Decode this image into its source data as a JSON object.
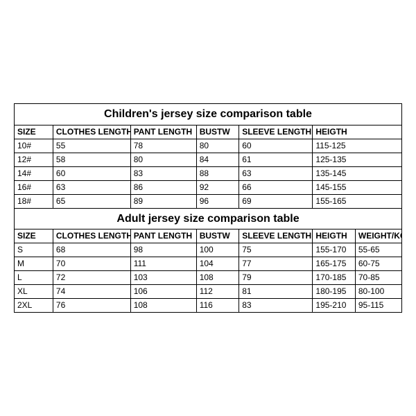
{
  "children": {
    "title": "Children's jersey size comparison table",
    "columns": [
      "SIZE",
      "CLOTHES LENGTH",
      "PANT LENGTH",
      "BUSTW",
      "SLEEVE LENGTH",
      "HEIGTH"
    ],
    "rows": [
      {
        "size": "10#",
        "clothes": "55",
        "pant": "78",
        "bustw": "80",
        "sleeve": "60",
        "height": "115-125"
      },
      {
        "size": "12#",
        "clothes": "58",
        "pant": "80",
        "bustw": "84",
        "sleeve": "61",
        "height": "125-135"
      },
      {
        "size": "14#",
        "clothes": "60",
        "pant": "83",
        "bustw": "88",
        "sleeve": "63",
        "height": "135-145"
      },
      {
        "size": "16#",
        "clothes": "63",
        "pant": "86",
        "bustw": "92",
        "sleeve": "66",
        "height": "145-155"
      },
      {
        "size": "18#",
        "clothes": "65",
        "pant": "89",
        "bustw": "96",
        "sleeve": "69",
        "height": "155-165"
      }
    ]
  },
  "adult": {
    "title": "Adult jersey size comparison table",
    "columns": [
      "SIZE",
      "CLOTHES LENGTH",
      "PANT LENGTH",
      "BUSTW",
      "SLEEVE LENGTH",
      "HEIGTH",
      "WEIGHT/KG"
    ],
    "rows": [
      {
        "size": "S",
        "clothes": "68",
        "pant": "98",
        "bustw": "100",
        "sleeve": "75",
        "height": "155-170",
        "weight": "55-65"
      },
      {
        "size": "M",
        "clothes": "70",
        "pant": "111",
        "bustw": "104",
        "sleeve": "77",
        "height": "165-175",
        "weight": "60-75"
      },
      {
        "size": "L",
        "clothes": "72",
        "pant": "103",
        "bustw": "108",
        "sleeve": "79",
        "height": "170-185",
        "weight": "70-85"
      },
      {
        "size": "XL",
        "clothes": "74",
        "pant": "106",
        "bustw": "112",
        "sleeve": "81",
        "height": "180-195",
        "weight": "80-100"
      },
      {
        "size": "2XL",
        "clothes": "76",
        "pant": "108",
        "bustw": "116",
        "sleeve": "83",
        "height": "195-210",
        "weight": "95-115"
      }
    ]
  },
  "style": {
    "border_color": "#000000",
    "background_color": "#ffffff",
    "title_fontsize": 16,
    "cell_fontsize": 12,
    "font_family": "Arial"
  }
}
